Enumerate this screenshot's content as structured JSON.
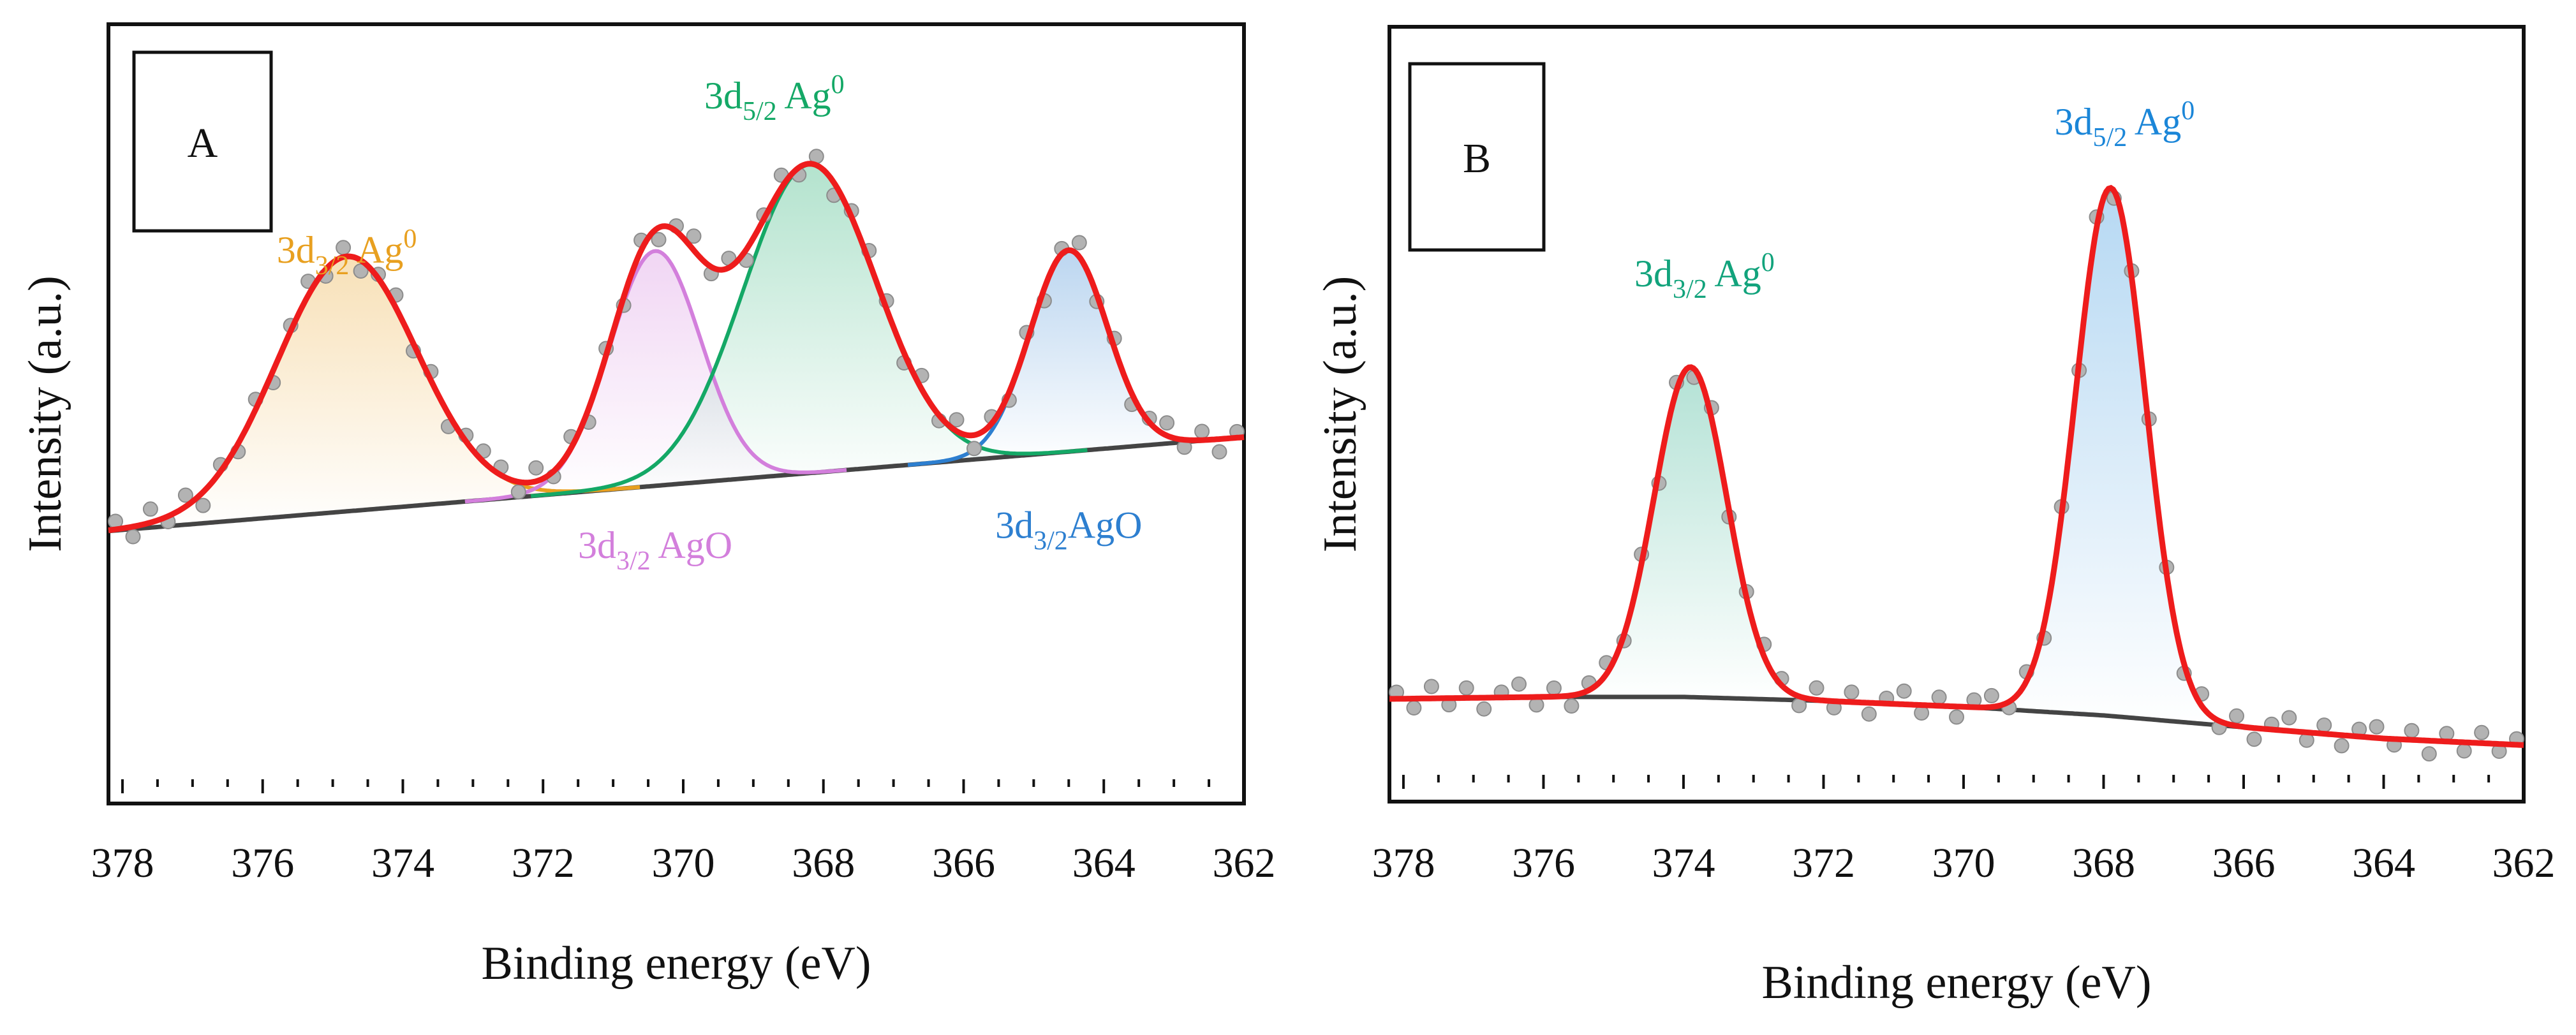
{
  "colors": {
    "fit": "#ee1c1c",
    "baseline": "#444444",
    "points": "#b3b3b3",
    "orange": "#e8a020",
    "violet": "#d37fdc",
    "green": "#14a866",
    "blue": "#2d7fd0",
    "teal": "#12a37c",
    "sky": "#1b86d8"
  },
  "chart_data": [
    {
      "panel": "A",
      "type": "line",
      "title": "",
      "xlabel": "Binding energy (eV)",
      "ylabel": "Intensity (a.u.)",
      "xlim": [
        378.2,
        362.0
      ],
      "ylim": [
        0,
        1
      ],
      "x_reversed": true,
      "xticks": [
        378,
        376,
        374,
        372,
        370,
        368,
        366,
        364,
        362
      ],
      "baseline": {
        "x": [
          378.2,
          362.0
        ],
        "y": [
          0.37,
          0.51
        ]
      },
      "components": [
        {
          "name": "3d3/2 Ag0",
          "color": "orange",
          "center": 374.8,
          "height": 0.38,
          "sigma": 1.0
        },
        {
          "name": "3d3/2 AgO",
          "color": "violet",
          "center": 370.4,
          "height": 0.35,
          "sigma": 0.65
        },
        {
          "name": "3d5/2 Ag0",
          "color": "green",
          "center": 368.2,
          "height": 0.46,
          "sigma": 0.95
        },
        {
          "name": "3d3/2AgO",
          "color": "blue",
          "center": 364.5,
          "height": 0.3,
          "sigma": 0.55
        }
      ],
      "labels": [
        {
          "main": "3d",
          "sub": "3/2",
          "rest": " Ag",
          "sup": "0",
          "color": "orange",
          "x": 374.8,
          "y": 0.77
        },
        {
          "main": "3d",
          "sub": "3/2",
          "rest": " AgO",
          "sup": "",
          "color": "violet",
          "x": 370.4,
          "y": 0.33
        },
        {
          "main": "3d",
          "sub": "5/2",
          "rest": " Ag",
          "sup": "0",
          "color": "green",
          "x": 368.7,
          "y": 1.0
        },
        {
          "main": "3d",
          "sub": "3/2",
          "rest": "AgO",
          "sup": "",
          "color": "blue",
          "x": 364.5,
          "y": 0.36
        }
      ],
      "scatter_noise": [
        0.012,
        -0.015,
        0.02,
        -0.008,
        0.017,
        -0.02,
        0.01,
        -0.012,
        0.015,
        -0.018,
        0.008,
        0.021,
        -0.01,
        0.014,
        -0.016,
        0.006,
        0.019,
        -0.011,
        0.013,
        -0.019,
        0.009,
        0.016
      ]
    },
    {
      "panel": "B",
      "type": "line",
      "title": "",
      "xlabel": "Binding energy (eV)",
      "ylabel": "Intensity (a.u.)",
      "xlim": [
        378.2,
        362.0
      ],
      "ylim": [
        0,
        1
      ],
      "x_reversed": true,
      "xticks": [
        378,
        376,
        374,
        372,
        370,
        368,
        366,
        364,
        362
      ],
      "baseline": {
        "x": [
          378.2,
          376.0,
          374.0,
          372.0,
          370.0,
          368.0,
          366.0,
          364.0,
          362.0
        ],
        "y": [
          0.115,
          0.118,
          0.118,
          0.112,
          0.103,
          0.09,
          0.072,
          0.055,
          0.045
        ]
      },
      "components": [
        {
          "name": "3d3/2 Ag0",
          "color": "teal",
          "center": 373.9,
          "height": 0.5,
          "sigma": 0.52
        },
        {
          "name": "3d5/2 Ag0",
          "color": "sky",
          "center": 367.9,
          "height": 0.8,
          "sigma": 0.5
        }
      ],
      "labels": [
        {
          "main": "3d",
          "sub": "3/2",
          "rest": " Ag",
          "sup": "0",
          "color": "teal",
          "x": 373.7,
          "y": 0.74
        },
        {
          "main": "3d",
          "sub": "5/2",
          "rest": " Ag",
          "sup": "0",
          "color": "sky",
          "x": 367.7,
          "y": 0.97
        }
      ],
      "scatter_noise": [
        0.01,
        -0.014,
        0.018,
        -0.01,
        0.015,
        -0.017,
        0.008,
        0.02,
        -0.012,
        0.013,
        -0.016,
        0.011,
        0.017,
        -0.009,
        0.014,
        -0.02,
        0.012,
        -0.013,
        0.016,
        -0.011,
        0.009,
        0.018
      ]
    }
  ]
}
